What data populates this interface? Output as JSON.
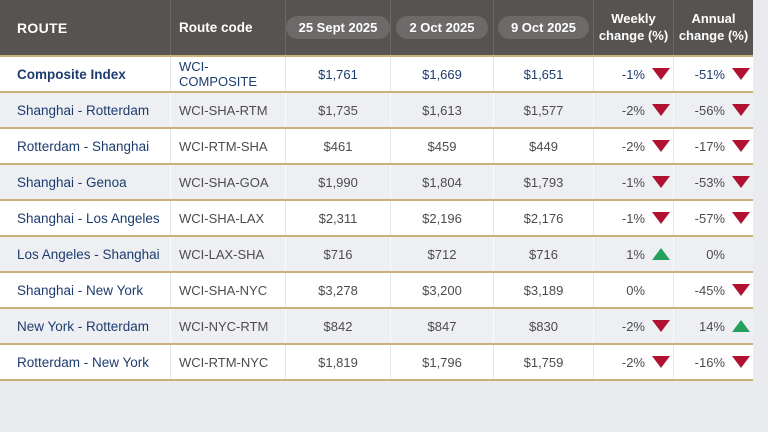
{
  "chart_data": {
    "type": "table",
    "title": "",
    "columns": [
      "ROUTE",
      "Route code",
      "25 Sept 2025",
      "2 Oct 2025",
      "9 Oct 2025",
      "Weekly change (%)",
      "Annual change (%)"
    ],
    "rows": [
      {
        "route": "Composite Index",
        "code": "WCI-COMPOSITE",
        "rates": [
          "$1,761",
          "$1,669",
          "$1,651"
        ],
        "weekly": {
          "value": "-1%",
          "direction": "down"
        },
        "annual": {
          "value": "-51%",
          "direction": "down"
        },
        "emphasis": true
      },
      {
        "route": "Shanghai - Rotterdam",
        "code": "WCI-SHA-RTM",
        "rates": [
          "$1,735",
          "$1,613",
          "$1,577"
        ],
        "weekly": {
          "value": "-2%",
          "direction": "down"
        },
        "annual": {
          "value": "-56%",
          "direction": "down"
        },
        "emphasis": false
      },
      {
        "route": "Rotterdam - Shanghai",
        "code": "WCI-RTM-SHA",
        "rates": [
          "$461",
          "$459",
          "$449"
        ],
        "weekly": {
          "value": "-2%",
          "direction": "down"
        },
        "annual": {
          "value": "-17%",
          "direction": "down"
        },
        "emphasis": false
      },
      {
        "route": "Shanghai - Genoa",
        "code": "WCI-SHA-GOA",
        "rates": [
          "$1,990",
          "$1,804",
          "$1,793"
        ],
        "weekly": {
          "value": "-1%",
          "direction": "down"
        },
        "annual": {
          "value": "-53%",
          "direction": "down"
        },
        "emphasis": false
      },
      {
        "route": "Shanghai - Los Angeles",
        "code": "WCI-SHA-LAX",
        "rates": [
          "$2,311",
          "$2,196",
          "$2,176"
        ],
        "weekly": {
          "value": "-1%",
          "direction": "down"
        },
        "annual": {
          "value": "-57%",
          "direction": "down"
        },
        "emphasis": false
      },
      {
        "route": "Los Angeles - Shanghai",
        "code": "WCI-LAX-SHA",
        "rates": [
          "$716",
          "$712",
          "$716"
        ],
        "weekly": {
          "value": "1%",
          "direction": "up"
        },
        "annual": {
          "value": "0%",
          "direction": "none"
        },
        "emphasis": false
      },
      {
        "route": "Shanghai - New York",
        "code": "WCI-SHA-NYC",
        "rates": [
          "$3,278",
          "$3,200",
          "$3,189"
        ],
        "weekly": {
          "value": "0%",
          "direction": "none"
        },
        "annual": {
          "value": "-45%",
          "direction": "down"
        },
        "emphasis": false
      },
      {
        "route": "New York - Rotterdam",
        "code": "WCI-NYC-RTM",
        "rates": [
          "$842",
          "$847",
          "$830"
        ],
        "weekly": {
          "value": "-2%",
          "direction": "down"
        },
        "annual": {
          "value": "14%",
          "direction": "up"
        },
        "emphasis": false
      },
      {
        "route": "Rotterdam - New York",
        "code": "WCI-RTM-NYC",
        "rates": [
          "$1,819",
          "$1,796",
          "$1,759"
        ],
        "weekly": {
          "value": "-2%",
          "direction": "down"
        },
        "annual": {
          "value": "-16%",
          "direction": "down"
        },
        "emphasis": false
      }
    ]
  },
  "colors": {
    "header_background": "#565351",
    "date_pill_background": "#6d6a69",
    "gold_divider": "#c9b178",
    "row_stripe": "#edeff3",
    "route_navy": "#1d3c6e",
    "value_gray": "#4c4c4c",
    "decrease_red": "#b01230",
    "increase_green": "#25a05f",
    "page_background": "#e9ebee"
  }
}
